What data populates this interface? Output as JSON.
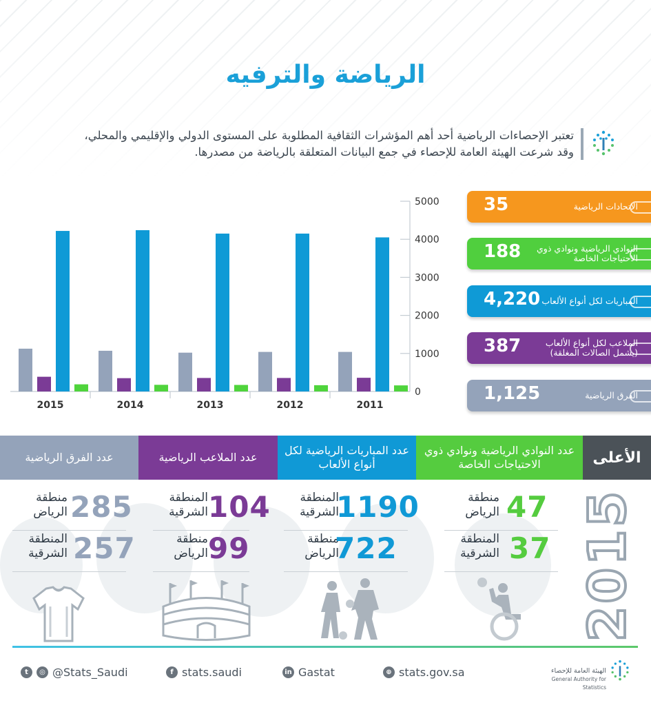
{
  "title": "الرياضة والترفيه",
  "intro": {
    "line1": "تعتبر الإحصاءات الرياضية أحد أهم المؤشرات الثقافية المطلوبة على المستوى الدولي والإقليمي والمحلي،",
    "line2": "وقد شرعت الهيئة العامة للإحصاء في جمع البيانات المتعلقة بالرياضة من مصدرها."
  },
  "chart_data": {
    "type": "bar",
    "categories": [
      "2015",
      "2014",
      "2013",
      "2012",
      "2011"
    ],
    "series": [
      {
        "name": "الفرق الرياضية",
        "color": "#94a3ba",
        "values": [
          1125,
          1070,
          1020,
          1040,
          1040
        ]
      },
      {
        "name": "الملاعب لكل أنواع الألعاب (يشمل الصالات المغلقة)",
        "color": "#7b3b96",
        "values": [
          387,
          350,
          355,
          355,
          360
        ]
      },
      {
        "name": "المباريات لكل أنواع الألعاب",
        "color": "#0f9ad6",
        "values": [
          4220,
          4240,
          4150,
          4150,
          4050
        ]
      },
      {
        "name": "النوادي الرياضية ونوادي ذوي الاحتياجات الخاصة",
        "color": "#4fd43c",
        "values": [
          188,
          175,
          172,
          165,
          160
        ]
      }
    ],
    "yticks": [
      0,
      1000,
      2000,
      3000,
      4000,
      5000
    ],
    "ylim": [
      0,
      5000
    ]
  },
  "stats_2015": [
    {
      "value": "35",
      "label": "الاتحادات الرياضية",
      "color": "#f6971e"
    },
    {
      "value": "188",
      "label": "النوادي الرياضية ونوادي ذوي الاحتياجات الخاصة",
      "color": "#50cf3e"
    },
    {
      "value": "4,220",
      "label": "المباريات لكل أنواع الألعاب",
      "color": "#0f9ad6"
    },
    {
      "value": "387",
      "label": "الملاعب لكل أنواع الألعاب (يشمل الصالات المغلقة)",
      "color": "#7b3b96"
    },
    {
      "value": "1,125",
      "label": "الفرق الرياضية",
      "color": "#94a3ba"
    }
  ],
  "highest": {
    "label": "الأعلى",
    "year": "2015",
    "columns": [
      {
        "header": "عدد الفرق الرياضية",
        "color": "#94a3ba",
        "rows": [
          {
            "value": "285",
            "region": "منطقة الرياض"
          },
          {
            "value": "257",
            "region": "المنطقة الشرقية"
          }
        ]
      },
      {
        "header": "عدد الملاعب الرياضية",
        "color": "#7b3b96",
        "rows": [
          {
            "value": "104",
            "region": "المنطقة الشرقية"
          },
          {
            "value": "99",
            "region": "منطقة الرياض"
          }
        ]
      },
      {
        "header": "عدد المباريات الرياضية لكل أنواع الألعاب",
        "color": "#1099d6",
        "rows": [
          {
            "value": "1190",
            "region": "المنطقة الشرقية"
          },
          {
            "value": "722",
            "region": "منطقة الرياض"
          }
        ]
      },
      {
        "header": "عدد النوادي الرياضية ونوادي ذوي الاحتياجات الخاصة",
        "color": "#55cc3f",
        "rows": [
          {
            "value": "47",
            "region": "منطقة الرياض"
          },
          {
            "value": "37",
            "region": "المنطقة الشرقية"
          }
        ]
      }
    ]
  },
  "footer": {
    "twitter": "@Stats_Saudi",
    "facebook": "stats.saudi",
    "linkedin": "Gastat",
    "website": "stats.gov.sa",
    "org_ar": "الهيئة العامة للإحصاء",
    "org_en": "General Authority for Statistics"
  }
}
